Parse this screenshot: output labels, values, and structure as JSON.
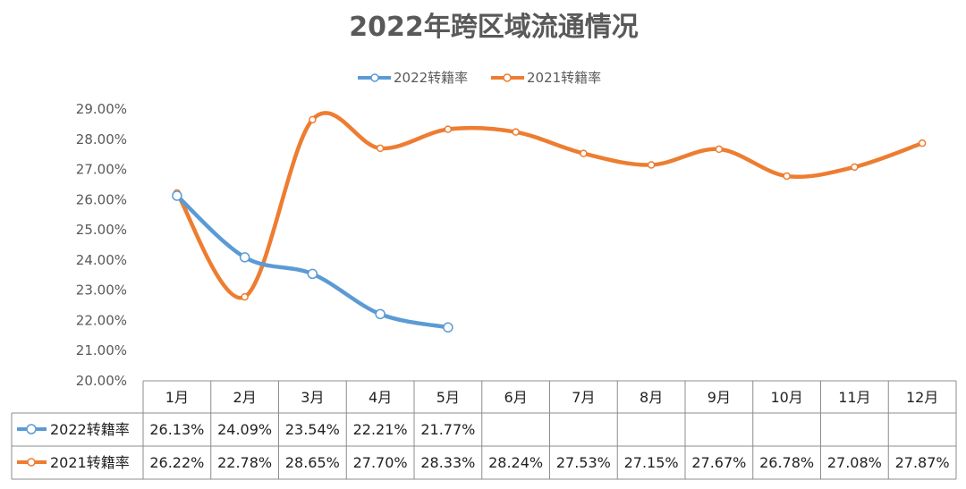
{
  "chart_data": {
    "type": "line",
    "title": "2022年跨区域流通情况",
    "categories": [
      "1月",
      "2月",
      "3月",
      "4月",
      "5月",
      "6月",
      "7月",
      "8月",
      "9月",
      "10月",
      "11月",
      "12月"
    ],
    "series": [
      {
        "name": "2022转籍率",
        "values": [
          26.13,
          24.09,
          23.54,
          22.21,
          21.77,
          null,
          null,
          null,
          null,
          null,
          null,
          null
        ],
        "labels": [
          "26.13%",
          "24.09%",
          "23.54%",
          "22.21%",
          "21.77%",
          "",
          "",
          "",
          "",
          "",
          "",
          ""
        ],
        "color": "#5B9BD5"
      },
      {
        "name": "2021转籍率",
        "values": [
          26.22,
          22.78,
          28.65,
          27.7,
          28.33,
          28.24,
          27.53,
          27.15,
          27.67,
          26.78,
          27.08,
          27.87
        ],
        "labels": [
          "26.22%",
          "22.78%",
          "28.65%",
          "27.70%",
          "28.33%",
          "28.24%",
          "27.53%",
          "27.15%",
          "27.67%",
          "26.78%",
          "27.08%",
          "27.87%"
        ],
        "color": "#ED7D31"
      }
    ],
    "ylim": [
      20,
      29
    ],
    "yticks": [
      "20.00%",
      "21.00%",
      "22.00%",
      "23.00%",
      "24.00%",
      "25.00%",
      "26.00%",
      "27.00%",
      "28.00%",
      "29.00%"
    ],
    "legend": "top",
    "data_table": true,
    "smooth": true
  }
}
